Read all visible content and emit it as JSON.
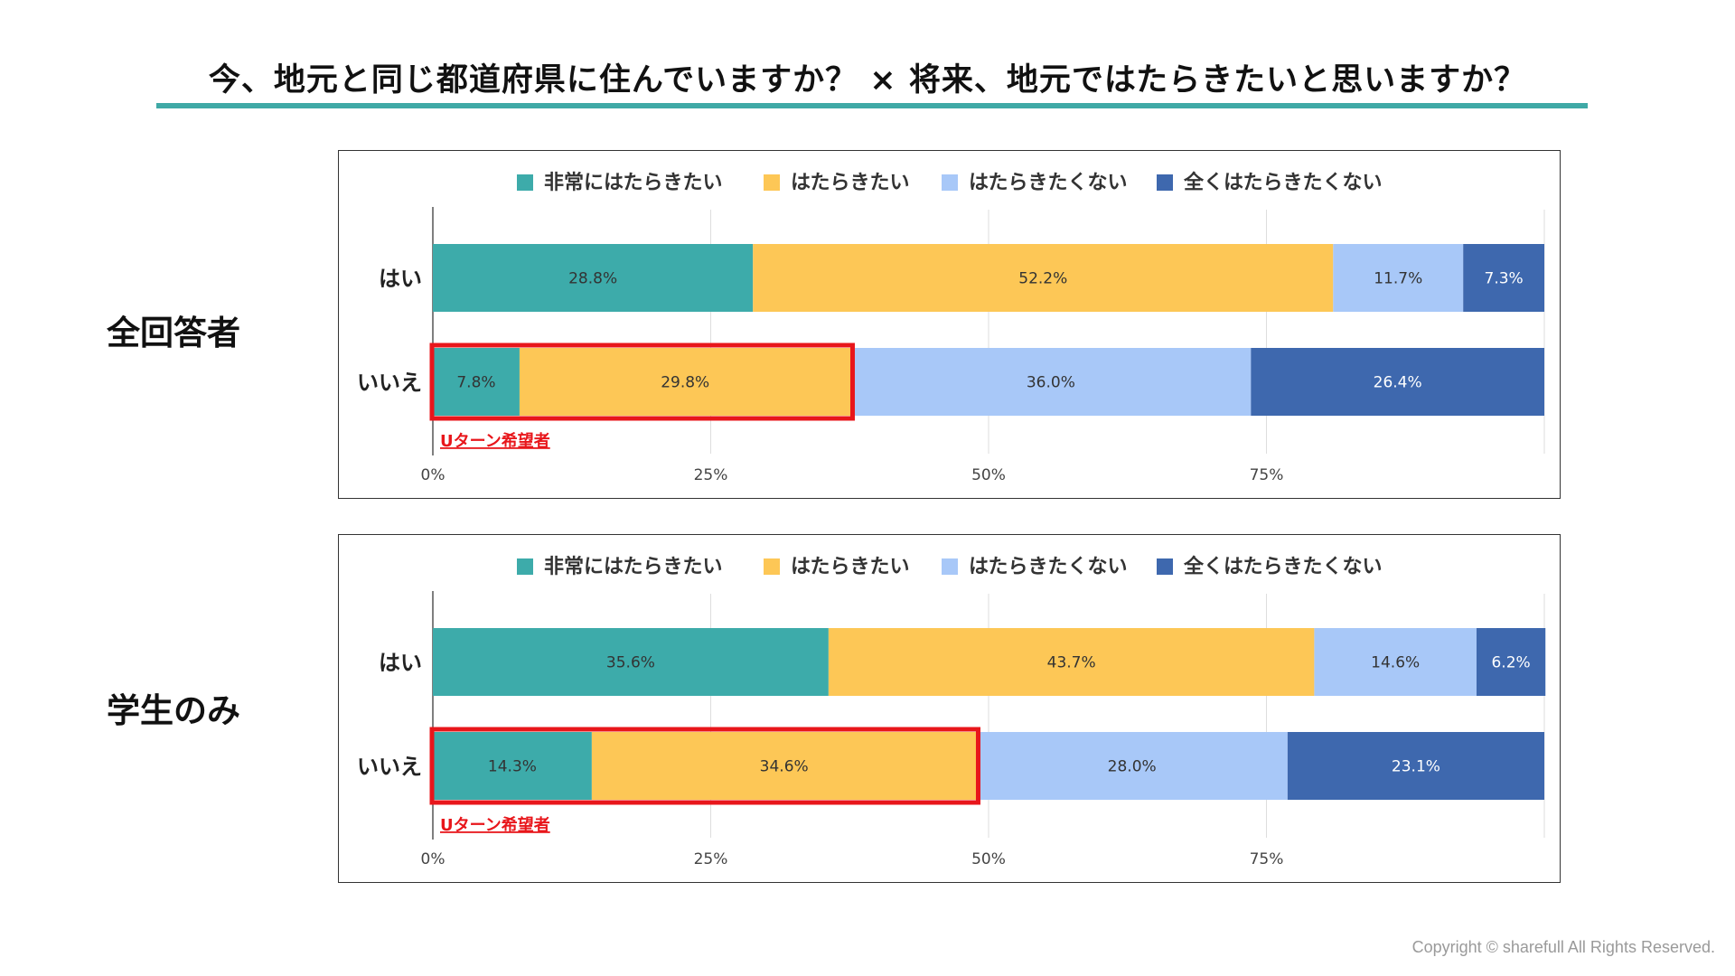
{
  "title": "今、地元と同じ都道府県に住んでいますか？ × 将来、地元ではたらきたいと思いますか？",
  "footer": {
    "copyright": "Copyright © sharefull All Rights Reserved."
  },
  "colors": {
    "title_rule": "#3fa9a6",
    "highlight": "#e8161b",
    "series": [
      "#3dabaa",
      "#fdc756",
      "#a8c8f8",
      "#3e68ae"
    ]
  },
  "chart_data": [
    {
      "type": "bar",
      "orientation": "horizontal",
      "stacked": true,
      "group_label": "全回答者",
      "categories": [
        "はい",
        "いいえ"
      ],
      "series": [
        {
          "name": "非常にはたらきたい",
          "values": [
            28.8,
            7.8
          ],
          "labels": [
            "28.8%",
            "7.8%"
          ]
        },
        {
          "name": "はたらきたい",
          "values": [
            52.2,
            29.8
          ],
          "labels": [
            "52.2%",
            "29.8%"
          ]
        },
        {
          "name": "はたらきたくない",
          "values": [
            11.7,
            36.0
          ],
          "labels": [
            "11.7%",
            "36.0%"
          ]
        },
        {
          "name": "全くはたらきたくない",
          "values": [
            7.3,
            26.4
          ],
          "labels": [
            "7.3%",
            "26.4%"
          ]
        }
      ],
      "xlim": [
        0,
        100
      ],
      "xticks": [
        "0%",
        "25%",
        "50%",
        "75%"
      ],
      "grid": true,
      "legend": "top",
      "annotation": {
        "text": "Uターン希望者",
        "category": "いいえ",
        "series_span": [
          "非常にはたらきたい",
          "はたらきたい"
        ]
      }
    },
    {
      "type": "bar",
      "orientation": "horizontal",
      "stacked": true,
      "group_label": "学生のみ",
      "categories": [
        "はい",
        "いいえ"
      ],
      "series": [
        {
          "name": "非常にはたらきたい",
          "values": [
            35.6,
            14.3
          ],
          "labels": [
            "35.6%",
            "14.3%"
          ]
        },
        {
          "name": "はたらきたい",
          "values": [
            43.7,
            34.6
          ],
          "labels": [
            "43.7%",
            "34.6%"
          ]
        },
        {
          "name": "はたらきたくない",
          "values": [
            14.6,
            28.0
          ],
          "labels": [
            "14.6%",
            "28.0%"
          ]
        },
        {
          "name": "全くはたらきたくない",
          "values": [
            6.2,
            23.1
          ],
          "labels": [
            "6.2%",
            "23.1%"
          ]
        }
      ],
      "xlim": [
        0,
        100
      ],
      "xticks": [
        "0%",
        "25%",
        "50%",
        "75%"
      ],
      "grid": true,
      "legend": "top",
      "annotation": {
        "text": "Uターン希望者",
        "category": "いいえ",
        "series_span": [
          "非常にはたらきたい",
          "はたらきたい"
        ]
      }
    }
  ]
}
